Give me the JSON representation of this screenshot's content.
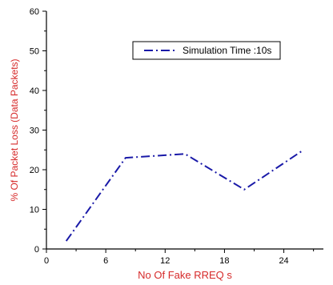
{
  "colors": {
    "series": "#1a1aa8",
    "axis_label": "#d62a2a",
    "axis": "#000000"
  },
  "chart_data": {
    "type": "line",
    "xlabel": "No Of Fake RREQ s",
    "ylabel": "% Of Packet Loss (Data Packets)",
    "xlim": [
      0,
      28
    ],
    "ylim": [
      0,
      60
    ],
    "xticks": [
      0,
      6,
      12,
      18,
      24
    ],
    "yticks": [
      0,
      10,
      20,
      30,
      40,
      50,
      60
    ],
    "grid": false,
    "legend_position": "top-right",
    "series": [
      {
        "name": "Simulation Time :10s",
        "line_style": "dash-dot",
        "x": [
          2,
          8,
          14,
          20,
          26
        ],
        "y": [
          2,
          23,
          24,
          15,
          25
        ]
      }
    ]
  }
}
